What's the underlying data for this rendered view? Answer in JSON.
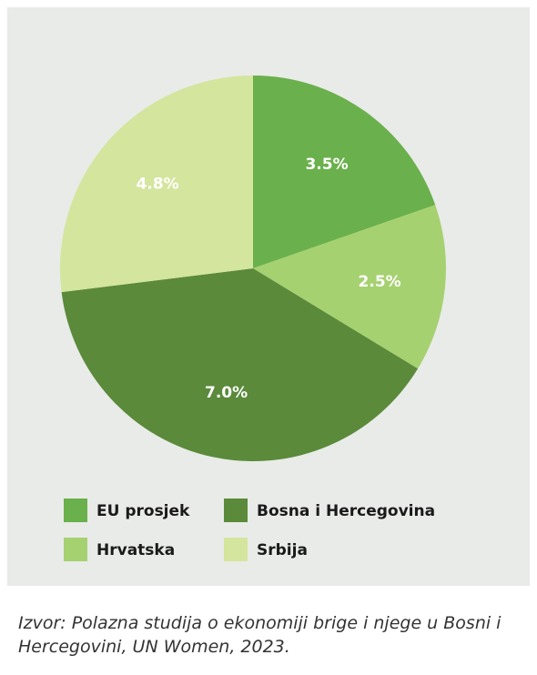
{
  "chart_data": {
    "type": "pie",
    "categories": [
      "EU prosjek",
      "Hrvatska",
      "Bosna i Hercegovina",
      "Srbija"
    ],
    "values": [
      3.5,
      2.5,
      7.0,
      4.8
    ],
    "value_labels": [
      "3.5%",
      "2.5%",
      "7.0%",
      "4.8%"
    ],
    "colors": [
      "#6ab04c",
      "#a6d170",
      "#5a8a3a",
      "#d4e59d"
    ]
  },
  "source": "Izvor: Polazna studija o ekonomiji brige i njege u Bosni i Hercegovini, UN Women, 2023."
}
